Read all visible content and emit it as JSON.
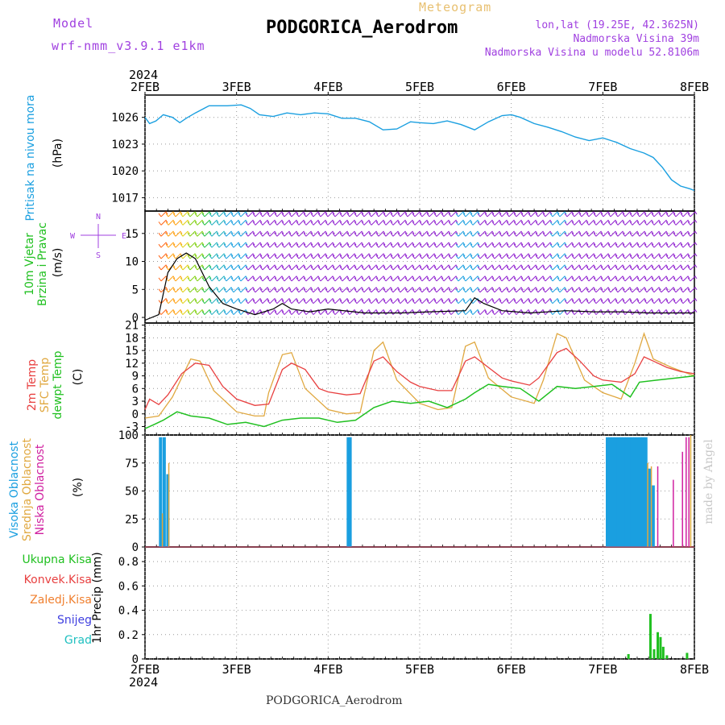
{
  "header": {
    "model_label": "Model",
    "model_name": "wrf-nmm_v3.9.1 e1km",
    "title": "Meteogram",
    "station": "PODGORICA_Aerodrom",
    "lonlat": "lon,lat (19.25E, 42.3625N)",
    "elevation": "Nadmorska Visina 39m",
    "model_elevation": "Nadmorska Visina u modelu 52.8106m",
    "year": "2024",
    "credit": "made by Angel"
  },
  "footer": {
    "station": "PODGORICA_Aerodrom",
    "year": "2024"
  },
  "colors": {
    "pressure": "#1a9fe0",
    "temp2m": "#e84040",
    "tempsfc": "#e0a840",
    "dewpt": "#20c020",
    "high_cloud": "#1a9fe0",
    "mid_cloud": "#e0a840",
    "low_cloud": "#d020a0",
    "wind_barb": "#9020d0",
    "precip": "#20c020"
  },
  "chart_data": [
    {
      "type": "line",
      "panel": "pressure",
      "ylabel_main": "Pritisak na nivou mora",
      "ylabel_unit": "(hPa)",
      "x_ticks": [
        "2FEB",
        "3FEB",
        "4FEB",
        "5FEB",
        "6FEB",
        "7FEB",
        "8FEB"
      ],
      "y_ticks": [
        1017,
        1020,
        1023,
        1026
      ],
      "ylim": [
        1015.5,
        1028.5
      ],
      "grid": true,
      "series": [
        {
          "values": [
            [
              0,
              1026.0
            ],
            [
              0.05,
              1025.3
            ],
            [
              0.12,
              1025.6
            ],
            [
              0.2,
              1026.3
            ],
            [
              0.3,
              1026.0
            ],
            [
              0.38,
              1025.4
            ],
            [
              0.45,
              1025.9
            ],
            [
              0.55,
              1026.5
            ],
            [
              0.7,
              1027.3
            ],
            [
              0.9,
              1027.3
            ],
            [
              1.05,
              1027.4
            ],
            [
              1.15,
              1027.0
            ],
            [
              1.25,
              1026.3
            ],
            [
              1.4,
              1026.1
            ],
            [
              1.55,
              1026.5
            ],
            [
              1.7,
              1026.3
            ],
            [
              1.85,
              1026.5
            ],
            [
              2.0,
              1026.4
            ],
            [
              2.15,
              1025.9
            ],
            [
              2.3,
              1025.9
            ],
            [
              2.45,
              1025.5
            ],
            [
              2.6,
              1024.6
            ],
            [
              2.75,
              1024.7
            ],
            [
              2.9,
              1025.5
            ],
            [
              3.0,
              1025.4
            ],
            [
              3.15,
              1025.3
            ],
            [
              3.3,
              1025.6
            ],
            [
              3.45,
              1025.2
            ],
            [
              3.6,
              1024.6
            ],
            [
              3.75,
              1025.5
            ],
            [
              3.9,
              1026.2
            ],
            [
              4.0,
              1026.3
            ],
            [
              4.1,
              1026.0
            ],
            [
              4.25,
              1025.3
            ],
            [
              4.4,
              1024.9
            ],
            [
              4.55,
              1024.4
            ],
            [
              4.7,
              1023.8
            ],
            [
              4.85,
              1023.4
            ],
            [
              5.0,
              1023.7
            ],
            [
              5.15,
              1023.2
            ],
            [
              5.3,
              1022.5
            ],
            [
              5.45,
              1022.0
            ],
            [
              5.55,
              1021.5
            ],
            [
              5.65,
              1020.4
            ],
            [
              5.75,
              1019.0
            ],
            [
              5.85,
              1018.3
            ],
            [
              5.95,
              1018.0
            ],
            [
              6.0,
              1017.8
            ]
          ]
        }
      ]
    },
    {
      "type": "line",
      "panel": "wind",
      "ylabel_main": "10m Vjetar",
      "ylabel_main2": "Brzina i Pravac",
      "ylabel_unit": "(m/s)",
      "compass": {
        "n": "N",
        "s": "S",
        "w": "W",
        "e": "E"
      },
      "y_ticks": [
        0,
        5,
        10,
        15
      ],
      "ylim": [
        -1,
        19
      ],
      "series": [
        {
          "name": "speed",
          "values": [
            [
              0,
              -0.5
            ],
            [
              0.15,
              0.5
            ],
            [
              0.25,
              8.0
            ],
            [
              0.35,
              10.5
            ],
            [
              0.45,
              11.5
            ],
            [
              0.55,
              10.5
            ],
            [
              0.7,
              5.5
            ],
            [
              0.85,
              2.5
            ],
            [
              1.0,
              1.5
            ],
            [
              1.2,
              0.5
            ],
            [
              1.4,
              1.5
            ],
            [
              1.5,
              2.5
            ],
            [
              1.6,
              1.5
            ],
            [
              1.8,
              1.0
            ],
            [
              2.0,
              1.5
            ],
            [
              2.4,
              0.8
            ],
            [
              2.8,
              0.8
            ],
            [
              3.1,
              1.0
            ],
            [
              3.5,
              1.2
            ],
            [
              3.6,
              3.5
            ],
            [
              3.7,
              2.5
            ],
            [
              3.9,
              1.2
            ],
            [
              4.2,
              0.8
            ],
            [
              4.6,
              1.2
            ],
            [
              4.9,
              1.0
            ],
            [
              5.2,
              1.0
            ],
            [
              5.5,
              0.8
            ],
            [
              5.8,
              0.8
            ],
            [
              6.0,
              0.8
            ]
          ]
        }
      ]
    },
    {
      "type": "line",
      "panel": "temperature",
      "ylabel_lines": [
        "2m Temp",
        "SFC Temp",
        "dewpt Temp"
      ],
      "ylabel_unit": "(C)",
      "y_ticks": [
        -3,
        0,
        3,
        6,
        9,
        12,
        15,
        18,
        21
      ],
      "ylim": [
        -5,
        21.5
      ],
      "grid": true,
      "series": [
        {
          "name": "2m Temp",
          "values": [
            [
              0,
              1.0
            ],
            [
              0.05,
              3.5
            ],
            [
              0.15,
              2.2
            ],
            [
              0.25,
              4.5
            ],
            [
              0.4,
              9.5
            ],
            [
              0.55,
              12.0
            ],
            [
              0.7,
              11.5
            ],
            [
              0.85,
              6.5
            ],
            [
              1.0,
              3.5
            ],
            [
              1.2,
              2.0
            ],
            [
              1.35,
              2.3
            ],
            [
              1.5,
              10.5
            ],
            [
              1.6,
              12.0
            ],
            [
              1.75,
              10.5
            ],
            [
              1.9,
              6.0
            ],
            [
              2.0,
              5.2
            ],
            [
              2.2,
              4.5
            ],
            [
              2.35,
              4.8
            ],
            [
              2.5,
              12.5
            ],
            [
              2.6,
              13.5
            ],
            [
              2.75,
              10.0
            ],
            [
              2.9,
              7.5
            ],
            [
              3.0,
              6.5
            ],
            [
              3.2,
              5.5
            ],
            [
              3.35,
              5.5
            ],
            [
              3.5,
              12.5
            ],
            [
              3.6,
              13.5
            ],
            [
              3.75,
              11.0
            ],
            [
              3.9,
              8.5
            ],
            [
              4.0,
              7.8
            ],
            [
              4.2,
              6.8
            ],
            [
              4.3,
              8.5
            ],
            [
              4.5,
              14.5
            ],
            [
              4.6,
              15.5
            ],
            [
              4.75,
              12.5
            ],
            [
              4.9,
              9.0
            ],
            [
              5.0,
              8.0
            ],
            [
              5.2,
              7.5
            ],
            [
              5.35,
              9.5
            ],
            [
              5.45,
              13.5
            ],
            [
              5.55,
              12.5
            ],
            [
              5.7,
              11.0
            ],
            [
              5.85,
              10.0
            ],
            [
              6.0,
              9.5
            ]
          ]
        },
        {
          "name": "SFC Temp",
          "values": [
            [
              0,
              -1.0
            ],
            [
              0.15,
              -0.5
            ],
            [
              0.3,
              4.0
            ],
            [
              0.5,
              13.0
            ],
            [
              0.6,
              12.5
            ],
            [
              0.75,
              5.5
            ],
            [
              1.0,
              0.5
            ],
            [
              1.2,
              -0.5
            ],
            [
              1.3,
              -0.5
            ],
            [
              1.35,
              5.0
            ],
            [
              1.5,
              14.0
            ],
            [
              1.6,
              14.5
            ],
            [
              1.75,
              6.0
            ],
            [
              2.0,
              1.0
            ],
            [
              2.2,
              0.0
            ],
            [
              2.35,
              0.3
            ],
            [
              2.5,
              15.0
            ],
            [
              2.6,
              17.0
            ],
            [
              2.75,
              8.0
            ],
            [
              3.0,
              2.5
            ],
            [
              3.2,
              1.0
            ],
            [
              3.35,
              1.5
            ],
            [
              3.5,
              16.0
            ],
            [
              3.6,
              17.0
            ],
            [
              3.75,
              8.5
            ],
            [
              4.0,
              4.0
            ],
            [
              4.25,
              2.5
            ],
            [
              4.35,
              8.0
            ],
            [
              4.5,
              19.0
            ],
            [
              4.6,
              18.0
            ],
            [
              4.8,
              8.0
            ],
            [
              5.0,
              5.0
            ],
            [
              5.2,
              3.5
            ],
            [
              5.35,
              12.0
            ],
            [
              5.45,
              19.0
            ],
            [
              5.55,
              13.0
            ],
            [
              5.75,
              11.0
            ],
            [
              6.0,
              9.0
            ]
          ]
        },
        {
          "name": "dewpt Temp",
          "values": [
            [
              0,
              -3.5
            ],
            [
              0.1,
              -2.5
            ],
            [
              0.2,
              -1.5
            ],
            [
              0.35,
              0.5
            ],
            [
              0.5,
              -0.5
            ],
            [
              0.7,
              -1.0
            ],
            [
              0.9,
              -2.5
            ],
            [
              1.1,
              -2.0
            ],
            [
              1.3,
              -3.0
            ],
            [
              1.5,
              -1.5
            ],
            [
              1.7,
              -1.0
            ],
            [
              1.9,
              -1.0
            ],
            [
              2.1,
              -2.0
            ],
            [
              2.3,
              -1.5
            ],
            [
              2.5,
              1.5
            ],
            [
              2.7,
              3.0
            ],
            [
              2.9,
              2.5
            ],
            [
              3.1,
              3.0
            ],
            [
              3.3,
              1.5
            ],
            [
              3.5,
              3.5
            ],
            [
              3.6,
              5.0
            ],
            [
              3.75,
              7.0
            ],
            [
              3.9,
              6.5
            ],
            [
              4.1,
              6.0
            ],
            [
              4.3,
              3.0
            ],
            [
              4.5,
              6.5
            ],
            [
              4.7,
              6.0
            ],
            [
              4.9,
              6.5
            ],
            [
              5.1,
              7.0
            ],
            [
              5.3,
              4.0
            ],
            [
              5.4,
              7.5
            ],
            [
              5.6,
              8.0
            ],
            [
              5.8,
              8.5
            ],
            [
              6.0,
              9.0
            ]
          ]
        }
      ]
    },
    {
      "type": "bar",
      "panel": "cloud",
      "ylabel_lines": [
        "Visoka Oblacnost",
        "Srednja Oblacnost",
        "Niska Oblacnost"
      ],
      "ylabel_unit": "(%)",
      "y_ticks": [
        0,
        25,
        50,
        75,
        100
      ],
      "ylim": [
        0,
        100
      ],
      "grid": true,
      "series": [
        {
          "name": "Visoka Oblacnost",
          "values": [
            [
              0.17,
              98
            ],
            [
              0.21,
              98
            ],
            [
              0.25,
              65
            ],
            [
              2.22,
              98
            ],
            [
              2.24,
              98
            ],
            [
              5.05,
              98
            ],
            [
              5.08,
              98
            ],
            [
              5.11,
              98
            ],
            [
              5.14,
              98
            ],
            [
              5.17,
              98
            ],
            [
              5.2,
              98
            ],
            [
              5.23,
              98
            ],
            [
              5.26,
              98
            ],
            [
              5.29,
              98
            ],
            [
              5.32,
              98
            ],
            [
              5.35,
              98
            ],
            [
              5.38,
              98
            ],
            [
              5.41,
              98
            ],
            [
              5.44,
              98
            ],
            [
              5.47,
              98
            ],
            [
              5.51,
              70
            ],
            [
              5.55,
              55
            ]
          ]
        },
        {
          "name": "Srednja Oblacnost",
          "values": [
            [
              0.19,
              30
            ],
            [
              0.26,
              75
            ],
            [
              5.49,
              75
            ],
            [
              5.53,
              72
            ],
            [
              5.96,
              100
            ]
          ]
        },
        {
          "name": "Niska Oblacnost",
          "values": [
            [
              5.6,
              72
            ],
            [
              5.77,
              60
            ],
            [
              5.87,
              85
            ],
            [
              5.91,
              98
            ],
            [
              5.94,
              98
            ]
          ]
        }
      ]
    },
    {
      "type": "bar",
      "panel": "precip",
      "legend": [
        "Ukupna Kisa",
        "Konvek.Kisa",
        "Zaledj.Kisa",
        "Snijeg",
        "Grad"
      ],
      "legend_colors": [
        "#20c020",
        "#e84040",
        "#f08030",
        "#4040e0",
        "#20c0c0"
      ],
      "ylabel_unit": "1hr Precip (mm)",
      "y_ticks": [
        0,
        0.2,
        0.4,
        0.6,
        0.8
      ],
      "ylim": [
        0,
        0.92
      ],
      "grid": true,
      "series": [
        {
          "name": "Ukupna Kisa",
          "values": [
            [
              5.28,
              0.04
            ],
            [
              5.52,
              0.37
            ],
            [
              5.56,
              0.08
            ],
            [
              5.6,
              0.22
            ],
            [
              5.63,
              0.18
            ],
            [
              5.66,
              0.1
            ],
            [
              5.7,
              0.03
            ],
            [
              5.92,
              0.05
            ]
          ]
        }
      ]
    }
  ]
}
